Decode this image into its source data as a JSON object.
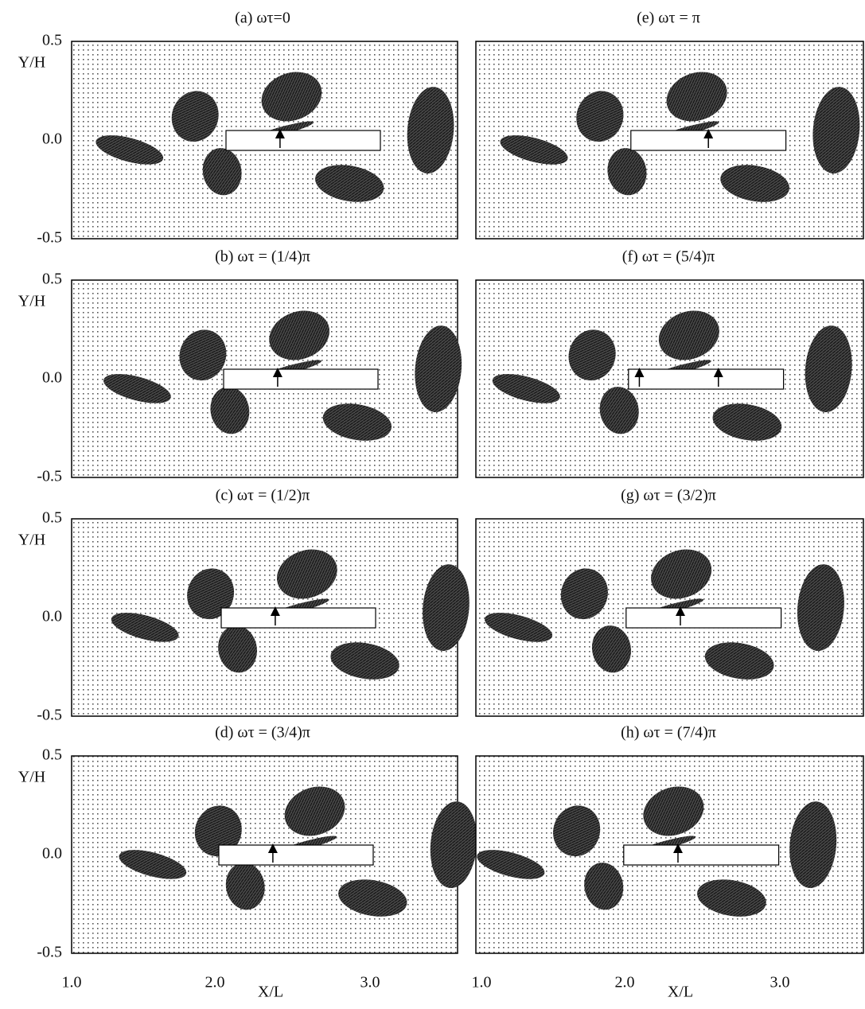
{
  "panels": [
    {
      "title": "(a)   ωτ=0"
    },
    {
      "title": "(b)   ωτ = (1/4)π"
    },
    {
      "title": "(c)   ωτ = (1/2)π"
    },
    {
      "title": "(d)   ωτ = (3/4)π"
    },
    {
      "title": "(e)   ωτ = π"
    },
    {
      "title": "(f)   ωτ = (5/4)π"
    },
    {
      "title": "(g)   ωτ = (3/2)π"
    },
    {
      "title": "(h)   ωτ = (7/4)π"
    }
  ],
  "axes": {
    "y_label": "Y/H",
    "x_label": "X/L",
    "y_ticks": [
      "0.5",
      "0.0",
      "-0.5"
    ],
    "x_ticks": [
      "1.0",
      "2.0",
      "3.0"
    ]
  }
}
